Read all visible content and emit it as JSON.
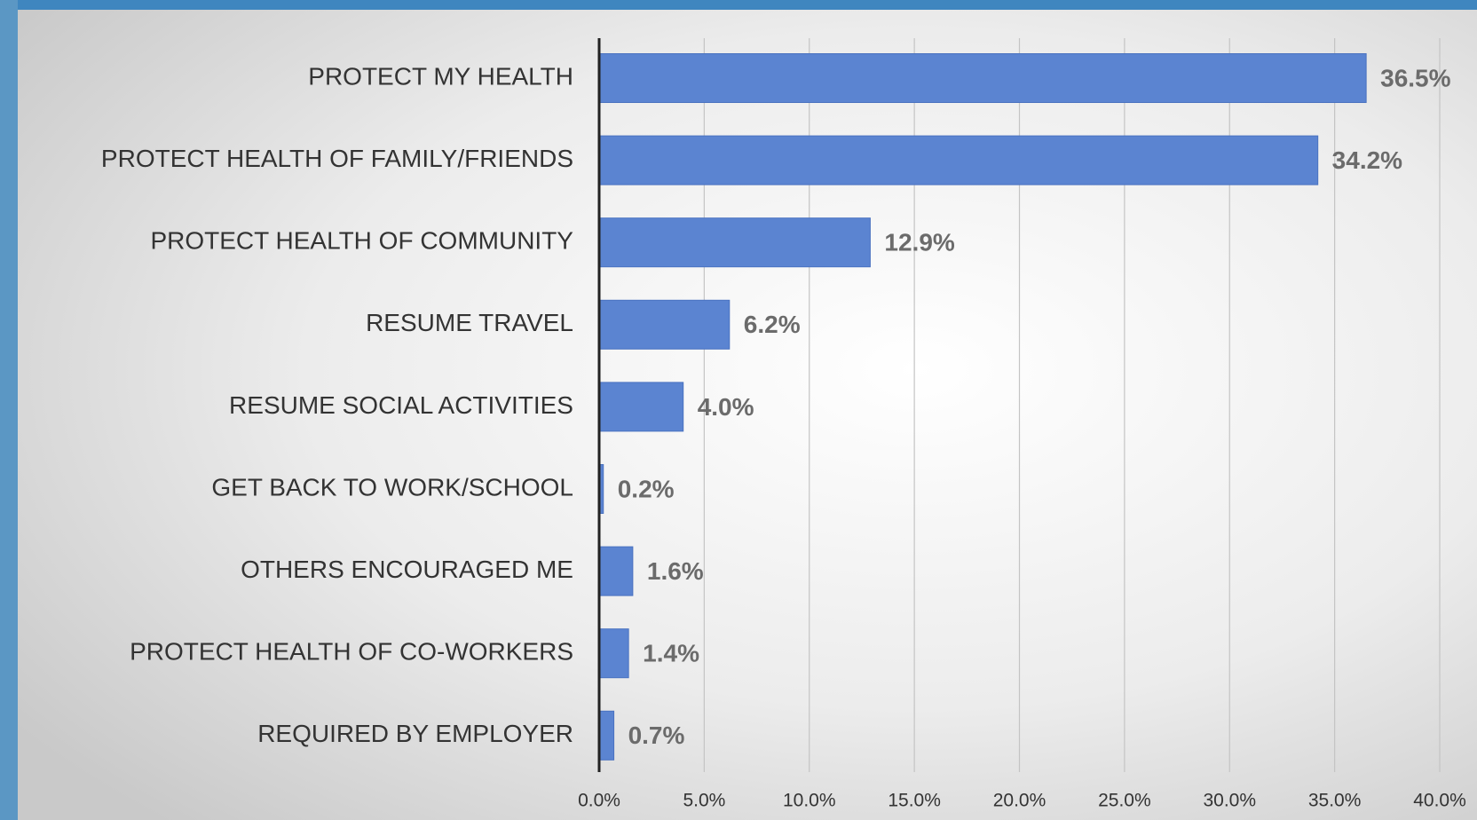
{
  "chart_data": {
    "type": "bar",
    "orientation": "horizontal",
    "categories": [
      "PROTECT MY HEALTH",
      "PROTECT HEALTH OF FAMILY/FRIENDS",
      "PROTECT HEALTH OF COMMUNITY",
      "RESUME TRAVEL",
      "RESUME SOCIAL ACTIVITIES",
      "GET BACK TO WORK/SCHOOL",
      "OTHERS ENCOURAGED ME",
      "PROTECT HEALTH OF CO-WORKERS",
      "REQUIRED BY EMPLOYER"
    ],
    "values": [
      36.5,
      34.2,
      12.9,
      6.2,
      4.0,
      0.2,
      1.6,
      1.4,
      0.7
    ],
    "value_labels": [
      "36.5%",
      "34.2%",
      "12.9%",
      "6.2%",
      "4.0%",
      "0.2%",
      "1.6%",
      "1.4%",
      "0.7%"
    ],
    "color": "#5b84d1",
    "xlim": [
      0,
      40
    ],
    "xticks": [
      {
        "value": 0,
        "label": "0.0%"
      },
      {
        "value": 5,
        "label": "5.0%"
      },
      {
        "value": 10,
        "label": "10.0%"
      },
      {
        "value": 15,
        "label": "15.0%"
      },
      {
        "value": 20,
        "label": "20.0%"
      },
      {
        "value": 25,
        "label": "25.0%"
      },
      {
        "value": 30,
        "label": "30.0%"
      },
      {
        "value": 35,
        "label": "35.0%"
      },
      {
        "value": 40,
        "label": "40.0%"
      }
    ],
    "grid": true
  }
}
